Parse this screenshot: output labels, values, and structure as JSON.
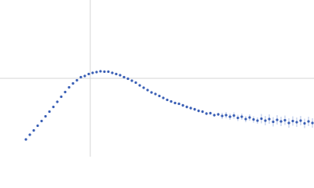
{
  "chart_data": {
    "type": "scatter",
    "xlim": [
      0,
      400
    ],
    "ylim": [
      0,
      200
    ],
    "xticks": [
      115
    ],
    "yticks": [
      100
    ],
    "grid": true,
    "series": [
      {
        "color": "#3a5fb5",
        "error_color": "#9fb3e0",
        "x": [
          33,
          38,
          43,
          48,
          53,
          58,
          63,
          68,
          73,
          78,
          83,
          88,
          93,
          98,
          103,
          108,
          113,
          118,
          123,
          128,
          133,
          138,
          143,
          148,
          153,
          158,
          163,
          168,
          173,
          178,
          183,
          188,
          193,
          198,
          203,
          208,
          213,
          218,
          223,
          228,
          233,
          238,
          243,
          248,
          253,
          258,
          263,
          268,
          273,
          278,
          283,
          288,
          293,
          298,
          303,
          308,
          313,
          318,
          323,
          328,
          333,
          338,
          343,
          348,
          353,
          358,
          363,
          368,
          373,
          378,
          383,
          388,
          393,
          398
        ],
        "values": [
          22,
          28,
          33.5,
          39.5,
          45.5,
          51.5,
          57.5,
          63.5,
          70,
          76.5,
          82.5,
          88.5,
          93.5,
          97.5,
          101.5,
          103,
          105.5,
          107,
          108,
          109,
          108.5,
          108.5,
          107,
          105.5,
          104,
          101.5,
          99.5,
          97,
          94.5,
          91,
          88,
          85,
          82,
          80,
          77.5,
          75,
          72.5,
          70.5,
          68.5,
          67.5,
          65.5,
          63.5,
          62,
          60.5,
          58.5,
          57.5,
          55,
          55.5,
          53,
          54,
          52,
          53,
          51,
          52.5,
          49.5,
          51,
          48,
          50,
          47.5,
          46,
          48.5,
          46,
          48,
          44.5,
          47,
          45,
          46.5,
          43,
          45.5,
          44,
          46,
          42.5,
          45,
          43
        ],
        "errors": [
          0.5,
          0.5,
          0.5,
          0.5,
          0.5,
          0.5,
          0.5,
          0.5,
          0.5,
          0.5,
          0.5,
          0.5,
          0.5,
          0.5,
          0.5,
          0.5,
          0.5,
          0.5,
          0.5,
          0.5,
          0.5,
          0.5,
          0.5,
          0.5,
          0.5,
          0.5,
          0.5,
          0.5,
          0.5,
          0.5,
          0.5,
          0.5,
          0.5,
          0.5,
          0.5,
          0.5,
          0.5,
          0.5,
          0.5,
          0.5,
          2,
          2,
          2,
          2,
          2,
          2,
          2,
          2,
          2,
          2,
          4,
          4,
          4,
          4,
          4,
          4,
          4,
          4,
          4,
          4,
          6,
          6,
          6,
          6,
          6,
          6,
          6,
          6,
          6,
          6,
          6,
          6,
          6,
          6
        ]
      }
    ]
  }
}
